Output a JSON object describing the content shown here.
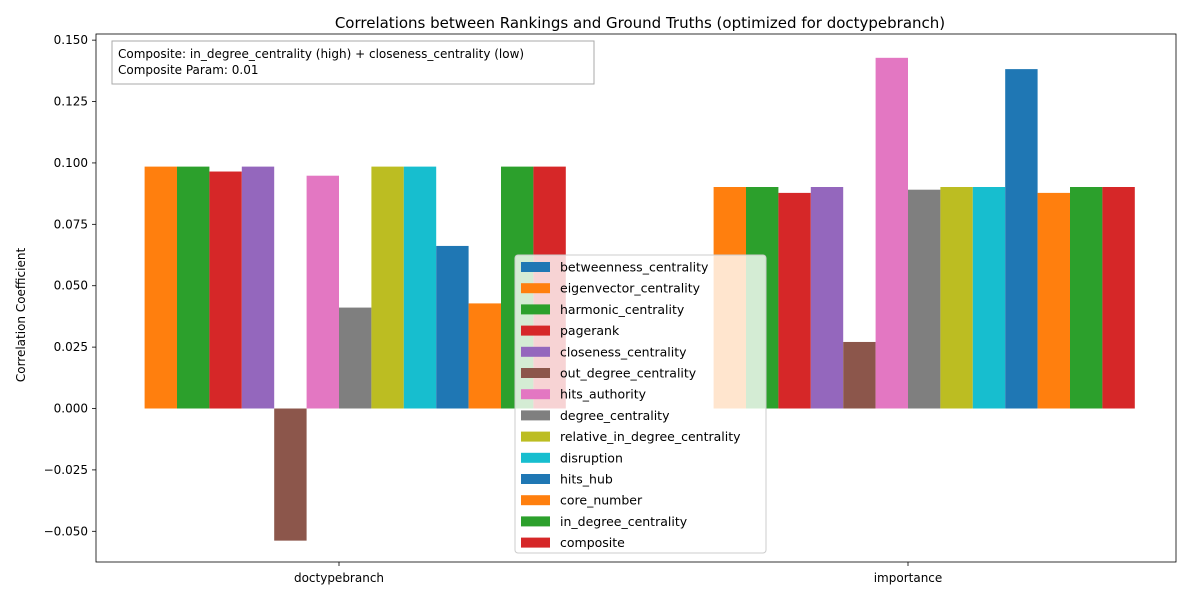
{
  "chart_data": {
    "type": "bar",
    "title": "Correlations between Rankings and Ground Truths (optimized for doctypebranch)",
    "xlabel": "",
    "ylabel": "Correlation Coefficient",
    "ylim": [
      -0.0625,
      0.1525
    ],
    "yticks": [
      -0.05,
      -0.025,
      0.0,
      0.025,
      0.05,
      0.075,
      0.1,
      0.125,
      0.15
    ],
    "ytick_labels": [
      "−0.050",
      "−0.025",
      "0.000",
      "0.025",
      "0.050",
      "0.075",
      "0.100",
      "0.125",
      "0.150"
    ],
    "categories": [
      "doctypebranch",
      "importance"
    ],
    "legend_position": "lower center",
    "annotation_lines": [
      "Composite: in_degree_centrality (high) + closeness_centrality (low)",
      "Composite Param: 0.01"
    ],
    "series": [
      {
        "name": "betweenness_centrality",
        "color": "#1f77b4",
        "values": [
          0.0,
          0.0
        ]
      },
      {
        "name": "eigenvector_centrality",
        "color": "#ff7f0e",
        "values": [
          0.0985,
          0.0902
        ]
      },
      {
        "name": "harmonic_centrality",
        "color": "#2ca02c",
        "values": [
          0.0985,
          0.0902
        ]
      },
      {
        "name": "pagerank",
        "color": "#d62728",
        "values": [
          0.0965,
          0.0878
        ]
      },
      {
        "name": "closeness_centrality",
        "color": "#9467bd",
        "values": [
          0.0985,
          0.0902
        ]
      },
      {
        "name": "out_degree_centrality",
        "color": "#8c564b",
        "values": [
          -0.0538,
          0.0271
        ]
      },
      {
        "name": "hits_authority",
        "color": "#e377c2",
        "values": [
          0.0948,
          0.1428
        ]
      },
      {
        "name": "degree_centrality",
        "color": "#7f7f7f",
        "values": [
          0.0411,
          0.0891
        ]
      },
      {
        "name": "relative_in_degree_centrality",
        "color": "#bcbd22",
        "values": [
          0.0985,
          0.0902
        ]
      },
      {
        "name": "disruption",
        "color": "#17becf",
        "values": [
          0.0985,
          0.0902
        ]
      },
      {
        "name": "hits_hub",
        "color": "#1f77b4",
        "values": [
          0.0662,
          0.1382
        ]
      },
      {
        "name": "core_number",
        "color": "#ff7f0e",
        "values": [
          0.0428,
          0.0878
        ]
      },
      {
        "name": "in_degree_centrality",
        "color": "#2ca02c",
        "values": [
          0.0985,
          0.0902
        ]
      },
      {
        "name": "composite",
        "color": "#d62728",
        "values": [
          0.0985,
          0.0902
        ]
      }
    ]
  }
}
